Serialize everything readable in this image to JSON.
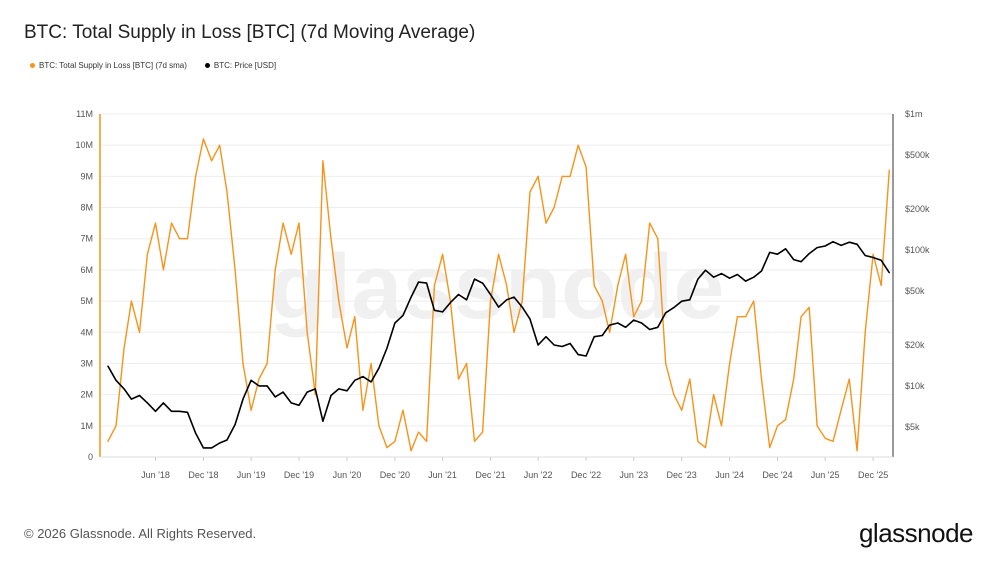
{
  "chart_data": {
    "type": "line",
    "title": "BTC: Total Supply in Loss [BTC] (7d Moving Average)",
    "legend_position": "top-left",
    "grid": true,
    "watermark": "glassnode",
    "xlim": [
      "2017-11-01",
      "2026-02-15"
    ],
    "x_ticks": [
      {
        "date": "2018-06-01",
        "label": "Jun '18"
      },
      {
        "date": "2018-12-01",
        "label": "Dec '18"
      },
      {
        "date": "2019-06-01",
        "label": "Jun '19"
      },
      {
        "date": "2019-12-01",
        "label": "Dec '19"
      },
      {
        "date": "2020-06-01",
        "label": "Jun '20"
      },
      {
        "date": "2020-12-01",
        "label": "Dec '20"
      },
      {
        "date": "2021-06-01",
        "label": "Jun '21"
      },
      {
        "date": "2021-12-01",
        "label": "Dec '21"
      },
      {
        "date": "2022-06-01",
        "label": "Jun '22"
      },
      {
        "date": "2022-12-01",
        "label": "Dec '22"
      },
      {
        "date": "2023-06-01",
        "label": "Jun '23"
      },
      {
        "date": "2023-12-01",
        "label": "Dec '23"
      },
      {
        "date": "2024-06-01",
        "label": "Jun '24"
      },
      {
        "date": "2024-12-01",
        "label": "Dec '24"
      },
      {
        "date": "2025-06-01",
        "label": "Jun '25"
      },
      {
        "date": "2025-12-01",
        "label": "Dec '25"
      }
    ],
    "y_left": {
      "ylim": [
        0,
        11000000
      ],
      "ticks": [
        {
          "v": 0,
          "label": "0"
        },
        {
          "v": 1000000,
          "label": "1M"
        },
        {
          "v": 2000000,
          "label": "2M"
        },
        {
          "v": 3000000,
          "label": "3M"
        },
        {
          "v": 4000000,
          "label": "4M"
        },
        {
          "v": 5000000,
          "label": "5M"
        },
        {
          "v": 6000000,
          "label": "6M"
        },
        {
          "v": 7000000,
          "label": "7M"
        },
        {
          "v": 8000000,
          "label": "8M"
        },
        {
          "v": 9000000,
          "label": "9M"
        },
        {
          "v": 10000000,
          "label": "10M"
        },
        {
          "v": 11000000,
          "label": "11M"
        }
      ]
    },
    "y_right": {
      "scale": "log",
      "ylim": [
        3000,
        1000000
      ],
      "ticks": [
        {
          "v": 5000,
          "label": "$5k"
        },
        {
          "v": 10000,
          "label": "$10k"
        },
        {
          "v": 20000,
          "label": "$20k"
        },
        {
          "v": 50000,
          "label": "$50k"
        },
        {
          "v": 100000,
          "label": "$100k"
        },
        {
          "v": 200000,
          "label": "$200k"
        },
        {
          "v": 500000,
          "label": "$500k"
        },
        {
          "v": 1000000,
          "label": "$1m"
        }
      ]
    },
    "x_start": "2017-12-01",
    "x_step": "monthly",
    "series": [
      {
        "name": "BTC: Total Supply in Loss [BTC] (7d sma)",
        "axis": "left",
        "color": "#f7931a",
        "values": [
          0.5,
          1.0,
          3.5,
          5.0,
          4.0,
          6.5,
          7.5,
          6.0,
          7.5,
          7.0,
          7.0,
          9.0,
          10.2,
          9.5,
          10.0,
          8.5,
          6.0,
          3.0,
          1.5,
          2.5,
          3.0,
          6.0,
          7.5,
          6.5,
          7.5,
          4.0,
          2.0,
          9.5,
          7.0,
          5.0,
          3.5,
          4.5,
          1.5,
          3.0,
          1.0,
          0.3,
          0.5,
          1.5,
          0.2,
          0.8,
          0.5,
          5.5,
          6.5,
          5.0,
          2.5,
          3.0,
          0.5,
          0.8,
          5.0,
          6.5,
          5.5,
          4.0,
          5.0,
          8.5,
          9.0,
          7.5,
          8.0,
          9.0,
          9.0,
          10.0,
          9.3,
          5.5,
          5.0,
          4.0,
          5.5,
          6.5,
          4.5,
          5.0,
          7.5,
          7.0,
          3.0,
          2.0,
          1.5,
          2.5,
          0.5,
          0.3,
          2.0,
          1.0,
          3.0,
          4.5,
          4.5,
          5.0,
          2.5,
          0.3,
          1.0,
          1.2,
          2.5,
          4.5,
          4.8,
          1.0,
          0.6,
          0.5,
          1.5,
          2.5,
          0.2,
          4.0,
          6.5,
          5.5,
          9.2
        ],
        "unit": "M BTC"
      },
      {
        "name": "BTC: Price [USD]",
        "axis": "right",
        "color": "#000000",
        "values": [
          14000,
          11000,
          9500,
          8000,
          8500,
          7500,
          6500,
          7500,
          6500,
          6500,
          6400,
          4500,
          3500,
          3500,
          3800,
          4000,
          5200,
          8000,
          11000,
          10000,
          10000,
          8300,
          9000,
          7500,
          7200,
          9000,
          9500,
          5500,
          8500,
          9500,
          9200,
          11000,
          11700,
          10700,
          13500,
          19000,
          29000,
          33000,
          45000,
          58000,
          57000,
          36000,
          35000,
          41000,
          47000,
          43000,
          61000,
          57000,
          47000,
          38000,
          43000,
          45000,
          38000,
          31000,
          20000,
          23000,
          20000,
          19500,
          20500,
          17000,
          16600,
          23000,
          23500,
          28000,
          29000,
          27000,
          30500,
          29000,
          26000,
          27000,
          34500,
          37700,
          42000,
          43000,
          61000,
          71000,
          63000,
          67000,
          62000,
          66000,
          59000,
          63000,
          70000,
          96000,
          93000,
          102000,
          85000,
          82000,
          94000,
          104000,
          107000,
          115000,
          108000,
          114000,
          110000,
          91000,
          88000,
          84000,
          68000
        ]
      }
    ]
  },
  "footer": {
    "copyright": "© 2026 Glassnode. All Rights Reserved.",
    "logo": "glassnode"
  }
}
